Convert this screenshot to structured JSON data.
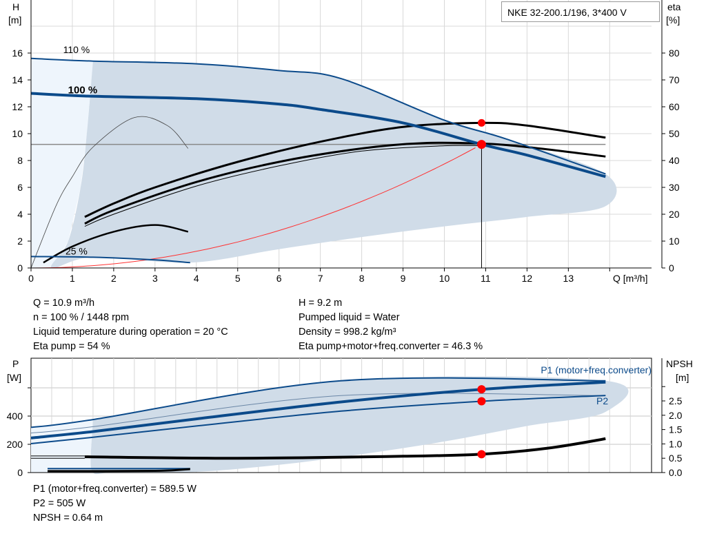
{
  "title": "NKE 32-200.1/196, 3*400 V",
  "info_top_left": [
    "Q = 10.9 m³/h",
    "n = 100 % / 1448 rpm",
    "Liquid temperature during operation = 20 °C",
    "Eta pump = 54 %"
  ],
  "info_top_right": [
    "H = 9.2 m",
    "Pumped liquid = Water",
    "Density = 998.2 kg/m³",
    "Eta pump+motor+freq.converter = 46.3 %"
  ],
  "info_bottom": [
    "P1 (motor+freq.converter) = 589.5 W",
    "P2 = 505 W",
    "NPSH = 0.64 m"
  ],
  "colors": {
    "curve_blue": "#0b4a8a",
    "shade": "#d0dce8",
    "shade_light": "#eef5fc",
    "duty_point": "#ff0000",
    "system_curve": "#ff3030",
    "grid": "#d8d8d8"
  },
  "chart_data": [
    {
      "type": "line",
      "xlabel": "Q [m³/h]",
      "ylabel": "H",
      "ylabel_unit": "[m]",
      "y2label": "eta",
      "y2label_unit": "[%]",
      "xlim": [
        0,
        15
      ],
      "ylim": [
        0,
        18
      ],
      "y2lim": [
        0,
        90
      ],
      "xticks": [
        0,
        1,
        2,
        3,
        4,
        5,
        6,
        7,
        8,
        9,
        10,
        11,
        12,
        13
      ],
      "yticks": [
        0,
        2,
        4,
        6,
        8,
        10,
        12,
        14,
        16
      ],
      "y2ticks": [
        0,
        10,
        20,
        30,
        40,
        50,
        60,
        70,
        80
      ],
      "grid": true,
      "speed_labels": [
        {
          "text": "110 %",
          "x": 1.1,
          "y": 16.0
        },
        {
          "text": "100 %",
          "x": 1.25,
          "y": 13.0
        },
        {
          "text": "25 %",
          "x": 1.1,
          "y": 1.0
        }
      ],
      "head_curves": [
        {
          "speed": "110 %",
          "points": [
            [
              0,
              15.6
            ],
            [
              1.5,
              15.4
            ],
            [
              4,
              15.2
            ],
            [
              6,
              14.7
            ],
            [
              7.5,
              14.1
            ],
            [
              10,
              11
            ],
            [
              11.5,
              9.6
            ],
            [
              13.9,
              7.0
            ]
          ]
        },
        {
          "speed": "100 %",
          "points": [
            [
              0,
              13
            ],
            [
              1.3,
              12.8
            ],
            [
              4,
              12.6
            ],
            [
              6,
              12.2
            ],
            [
              7,
              11.8
            ],
            [
              9,
              10.8
            ],
            [
              10.9,
              9.2
            ],
            [
              12,
              8.4
            ],
            [
              13.9,
              6.8
            ]
          ]
        },
        {
          "speed": "25 %",
          "points": [
            [
              0,
              0.85
            ],
            [
              1.5,
              0.8
            ],
            [
              3,
              0.6
            ],
            [
              3.85,
              0.4
            ]
          ]
        }
      ],
      "eta_curves": [
        {
          "label": "Eta pump",
          "points": [
            [
              1.3,
              19
            ],
            [
              2,
              24
            ],
            [
              3,
              30
            ],
            [
              5,
              39.5
            ],
            [
              7,
              47
            ],
            [
              9,
              52.5
            ],
            [
              10.9,
              54
            ],
            [
              12,
              53
            ],
            [
              13.9,
              48.5
            ]
          ]
        },
        {
          "label": "Eta pump+motor+freq.converter",
          "points": [
            [
              1.3,
              16.5
            ],
            [
              2,
              21.5
            ],
            [
              4,
              32
            ],
            [
              6,
              39.5
            ],
            [
              8,
              44.5
            ],
            [
              9.5,
              46.5
            ],
            [
              10.9,
              46.3
            ],
            [
              12,
              45
            ],
            [
              13.9,
              41.5
            ]
          ]
        },
        {
          "label": "",
          "points": [
            [
              1.3,
              15.5
            ],
            [
              2,
              20
            ],
            [
              4,
              30.5
            ],
            [
              6,
              38
            ],
            [
              8,
              43.5
            ],
            [
              10,
              45.5
            ],
            [
              10.9,
              45.5
            ]
          ]
        },
        {
          "label": "",
          "points": [
            [
              0,
              0
            ],
            [
              0.6,
              23
            ],
            [
              1,
              34
            ],
            [
              1.5,
              45
            ],
            [
              2.5,
              56
            ],
            [
              3.3,
              53
            ],
            [
              3.8,
              44.5
            ]
          ]
        },
        {
          "label": "",
          "points": [
            [
              0.3,
              2
            ],
            [
              1,
              8
            ],
            [
              2,
              13.5
            ],
            [
              3,
              16
            ],
            [
              3.8,
              13.5
            ]
          ]
        }
      ],
      "shade_region": [
        [
          1.5,
          15.4
        ],
        [
          4,
          15.2
        ],
        [
          6,
          14.7
        ],
        [
          7.5,
          14.1
        ],
        [
          10,
          11
        ],
        [
          11.5,
          9.6
        ],
        [
          13.9,
          7.0
        ],
        [
          13.9,
          4.6
        ],
        [
          12,
          3.8
        ],
        [
          10,
          3.1
        ],
        [
          8,
          2.3
        ],
        [
          6,
          1.4
        ],
        [
          3.85,
          0.4
        ],
        [
          1.5,
          0.8
        ],
        [
          0.5,
          0.0
        ],
        [
          0.9,
          2
        ],
        [
          1.2,
          6
        ],
        [
          1.35,
          10
        ],
        [
          1.5,
          15.4
        ]
      ],
      "light_region": [
        [
          0,
          0
        ],
        [
          0.5,
          0
        ],
        [
          0.9,
          2
        ],
        [
          1.2,
          6
        ],
        [
          1.35,
          10
        ],
        [
          1.5,
          15.4
        ],
        [
          0,
          15.6
        ]
      ],
      "system_curve": {
        "h_at_duty": 9.2,
        "q_at_duty": 10.9
      },
      "duty_point": {
        "Q": 10.9,
        "H": 9.2,
        "eta": 54
      }
    },
    {
      "type": "line",
      "ylabel": "P",
      "ylabel_unit": "[W]",
      "y2label": "NPSH",
      "y2label_unit": "[m]",
      "xlim": [
        0,
        15
      ],
      "ylim": [
        0,
        760
      ],
      "y2lim": [
        0,
        3.75
      ],
      "yticks": [
        0,
        200,
        400
      ],
      "y2ticks": [
        0.0,
        0.5,
        1.0,
        1.5,
        2.0,
        2.5
      ],
      "y2tick_labels": [
        "0.0",
        "0.5",
        "1.0",
        "1.5",
        "2.0",
        "2.5"
      ],
      "grid": true,
      "series_labels": [
        "P1 (motor+freq.converter)",
        "P2"
      ],
      "power_curves": [
        {
          "name": "P1 (motor+freq.converter) 110 %",
          "points": [
            [
              0,
              320
            ],
            [
              1.5,
              375
            ],
            [
              7.5,
              650
            ],
            [
              13.9,
              650
            ]
          ],
          "w": 2
        },
        {
          "name": "",
          "points": [
            [
              0,
              280
            ],
            [
              1.5,
              325
            ],
            [
              7.5,
              545
            ],
            [
              13.9,
              545
            ]
          ],
          "w": 1
        },
        {
          "name": "P1 (motor+freq.converter)",
          "points": [
            [
              0,
              245
            ],
            [
              1.5,
              290
            ],
            [
              4,
              380
            ],
            [
              7.5,
              500
            ],
            [
              10.9,
              589.5
            ],
            [
              13.9,
              640
            ]
          ],
          "w": 4
        },
        {
          "name": "P2",
          "points": [
            [
              0,
              205
            ],
            [
              1.5,
              250
            ],
            [
              4,
              330
            ],
            [
              7.5,
              435
            ],
            [
              10.9,
              505
            ],
            [
              13.9,
              546
            ]
          ],
          "w": 2
        },
        {
          "name": "",
          "points": [
            [
              0.4,
              28
            ],
            [
              3.85,
              28
            ]
          ],
          "w": 2
        }
      ],
      "npsh_curve": [
        [
          0,
          0.55
        ],
        [
          1.3,
          0.55
        ],
        [
          5,
          0.5
        ],
        [
          9,
          0.57
        ],
        [
          10.9,
          0.64
        ],
        [
          12.5,
          0.85
        ],
        [
          13.9,
          1.18
        ]
      ],
      "npsh_small": [
        [
          0.4,
          0.05
        ],
        [
          3,
          0.06
        ],
        [
          3.85,
          0.12
        ]
      ],
      "shade_region": [
        [
          1.5,
          375
        ],
        [
          7.5,
          650
        ],
        [
          13.9,
          650
        ],
        [
          13.9,
          430
        ],
        [
          12,
          330
        ],
        [
          10,
          220
        ],
        [
          8,
          130
        ],
        [
          6,
          55
        ],
        [
          4,
          5
        ],
        [
          2,
          0
        ],
        [
          1.5,
          0
        ],
        [
          1.45,
          150
        ]
      ],
      "light_region": [
        [
          0,
          0
        ],
        [
          1.5,
          0
        ],
        [
          1.45,
          150
        ],
        [
          1.5,
          375
        ],
        [
          0,
          320
        ]
      ],
      "duty_point": {
        "P1": 589.5,
        "P2": 505,
        "NPSH": 0.64,
        "Q": 10.9
      }
    }
  ]
}
